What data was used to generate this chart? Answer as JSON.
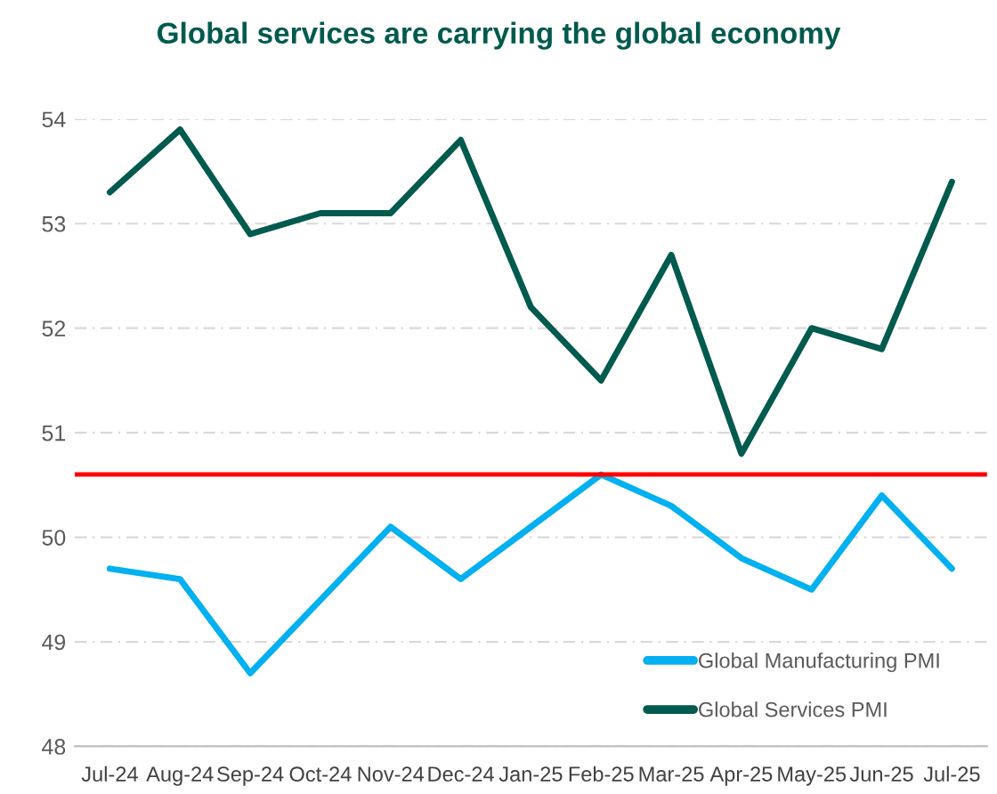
{
  "chart_data": {
    "type": "line",
    "title": "Global services are carrying the global economy",
    "categories": [
      "Jul-24",
      "Aug-24",
      "Sep-24",
      "Oct-24",
      "Nov-24",
      "Dec-24",
      "Jan-25",
      "Feb-25",
      "Mar-25",
      "Apr-25",
      "May-25",
      "Jun-25",
      "Jul-25"
    ],
    "series": [
      {
        "name": "Global Manufacturing PMI",
        "color": "#00b0f0",
        "values": [
          49.7,
          49.6,
          48.7,
          49.4,
          50.1,
          49.6,
          50.1,
          50.6,
          50.3,
          49.8,
          49.5,
          50.4,
          49.7
        ]
      },
      {
        "name": "Global Services PMI",
        "color": "#005a4e",
        "values": [
          53.3,
          53.9,
          52.9,
          53.1,
          53.1,
          53.8,
          52.2,
          51.5,
          52.7,
          50.8,
          52.0,
          51.8,
          53.4
        ]
      }
    ],
    "ref_lines": [
      {
        "axis": "y",
        "value": 50.6,
        "color": "#ff0000"
      }
    ],
    "ylim": [
      48,
      54
    ],
    "yticks": [
      48,
      49,
      50,
      51,
      52,
      53,
      54
    ],
    "grid": "y",
    "legend": "bottom right",
    "marker": "none",
    "line_style": "solid"
  }
}
